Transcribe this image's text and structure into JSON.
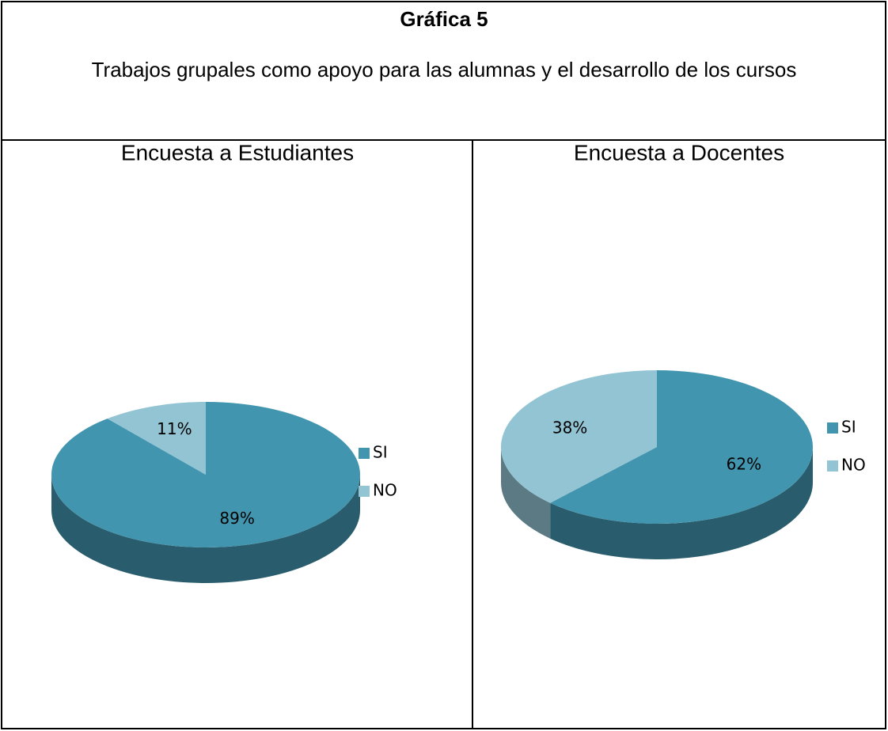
{
  "header": {
    "title": "Gráfica 5",
    "subtitle": "Trabajos grupales como apoyo para las alumnas y  el desarrollo de los cursos"
  },
  "chart_data": [
    {
      "type": "pie",
      "title": "Encuesta a Estudiantes",
      "categories": [
        "SI",
        "NO"
      ],
      "values": [
        89,
        11
      ],
      "value_labels": [
        "89%",
        "11%"
      ],
      "colors": [
        "#4295ae",
        "#93c4d4"
      ],
      "legend": "right"
    },
    {
      "type": "pie",
      "title": "Encuesta a Docentes",
      "categories": [
        "SI",
        "NO"
      ],
      "values": [
        62,
        38
      ],
      "value_labels": [
        "62%",
        "38%"
      ],
      "colors": [
        "#4295ae",
        "#93c4d4"
      ],
      "legend": "right"
    }
  ]
}
